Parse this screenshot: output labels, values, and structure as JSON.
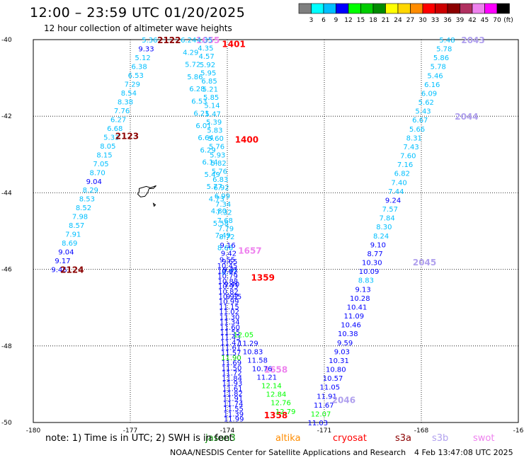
{
  "header": {
    "title": "12:00 – 23:59 UTC 01/20/2025",
    "subtitle": "12 hour collection of altimeter wave heights"
  },
  "colorbar": {
    "colors": [
      "#7f7f7f",
      "#00ffff",
      "#00bfff",
      "#0000ff",
      "#00ff00",
      "#00cd00",
      "#008b00",
      "#ffff00",
      "#ffd700",
      "#ff8c00",
      "#ff0000",
      "#cd0000",
      "#8b0000",
      "#b03060",
      "#ee82ee",
      "#ff00ff",
      "#000000"
    ],
    "labels": [
      "3",
      "6",
      "9",
      "12",
      "15",
      "18",
      "21",
      "24",
      "27",
      "30",
      "33",
      "36",
      "39",
      "42",
      "45",
      "70"
    ],
    "unit": "(ft)"
  },
  "footer": {
    "note": "note:  1) Time is in UTC; 2) SWH is in feet",
    "credit": "NOAA/NESDIS Center for Satellite Applications and Research",
    "timestamp": "4 Feb 13:47:08 UTC 2025"
  },
  "legend": [
    {
      "name": "jason3",
      "color": "#008b00"
    },
    {
      "name": "altika",
      "color": "#ff8c00"
    },
    {
      "name": "cryosat",
      "color": "#ff0000"
    },
    {
      "name": "s3a",
      "color": "#8b0000"
    },
    {
      "name": "s3b",
      "color": "#b0a0ee"
    },
    {
      "name": "swot",
      "color": "#ee82ee"
    }
  ],
  "chart_data": {
    "type": "scatter",
    "xlim": [
      -180,
      -165
    ],
    "ylim": [
      -50,
      -40
    ],
    "x_ticks": [
      "-180",
      "-177",
      "-174",
      "-171",
      "-168",
      "-16"
    ],
    "y_ticks": [
      "-40",
      "-42",
      "-44",
      "-46",
      "-48",
      "-50"
    ],
    "grid": true,
    "tracks": [
      {
        "start": [
          -176.4,
          -40.0
        ],
        "end": [
          -179.2,
          -46.0
        ],
        "values": [
          5.36,
          9.33,
          5.12,
          6.38,
          6.53,
          7.29,
          8.54,
          8.38,
          7.76,
          6.27,
          6.68,
          5.33,
          8.05,
          8.15,
          7.05,
          8.7,
          9.04,
          8.29,
          8.53,
          8.52,
          7.98,
          8.57,
          7.91,
          8.69,
          9.04,
          9.17,
          9.46
        ],
        "colors": [
          "#00bfff",
          "#0000ff",
          "#00bfff",
          "#00bfff",
          "#00bfff",
          "#00bfff",
          "#00bfff",
          "#00bfff",
          "#00bfff",
          "#00bfff",
          "#00bfff",
          "#00bfff",
          "#00bfff",
          "#00bfff",
          "#00bfff",
          "#00bfff",
          "#0000ff",
          "#00bfff",
          "#00bfff",
          "#00bfff",
          "#00bfff",
          "#00bfff",
          "#00bfff",
          "#00bfff",
          "#0000ff",
          "#0000ff",
          "#0000ff"
        ],
        "time_labels": [
          {
            "text": "2122",
            "lon": -175.8,
            "lat": -40.0,
            "color": "#8b0000"
          },
          {
            "text": "2123",
            "lon": -177.1,
            "lat": -42.5,
            "color": "#8b0000"
          },
          {
            "text": "2124",
            "lon": -178.8,
            "lat": -46.0,
            "color": "#8b0000"
          }
        ]
      },
      {
        "start": [
          -175.2,
          -40.0
        ],
        "end": [
          -173.8,
          -46.7
        ],
        "values": [
          6.24,
          4.29,
          5.72,
          5.86,
          6.28,
          6.53,
          6.21,
          6.01,
          6.64,
          6.29,
          6.14,
          5.49,
          5.77,
          4.73,
          4.8,
          5.58,
          7.49,
          8.66,
          9.55,
          8.77,
          9.4,
          9.35
        ],
        "colors": [
          "#00bfff",
          "#00bfff",
          "#00bfff",
          "#00bfff",
          "#00bfff",
          "#00bfff",
          "#00bfff",
          "#00bfff",
          "#00bfff",
          "#00bfff",
          "#00bfff",
          "#00bfff",
          "#00bfff",
          "#00bfff",
          "#00bfff",
          "#00bfff",
          "#00bfff",
          "#00bfff",
          "#0000ff",
          "#00bfff",
          "#0000ff",
          "#0000ff"
        ],
        "time_labels": [
          {
            "text": "1655",
            "lon": -174.6,
            "lat": -40.0,
            "color": "#ee82ee"
          },
          {
            "text": "1657",
            "lon": -173.3,
            "lat": -45.5,
            "color": "#ee82ee"
          },
          {
            "text": "1658",
            "lon": -172.5,
            "lat": -48.6,
            "color": "#ee82ee"
          }
        ]
      },
      {
        "start": [
          -174.7,
          -40.0
        ],
        "end": [
          -173.9,
          -46.0
        ],
        "values": [
          4.35,
          4.35,
          4.57,
          5.92,
          5.95,
          6.85,
          5.21,
          5.85,
          5.14,
          5.47,
          5.39,
          5.83,
          5.6,
          5.76,
          5.93,
          5.82,
          5.76,
          6.83,
          6.92,
          6.99,
          7.34,
          7.32,
          7.68,
          7.79,
          8.72,
          9.16,
          9.42,
          9.65,
          9.31
        ],
        "colors": [
          "#00bfff",
          "#00bfff",
          "#00bfff",
          "#00bfff",
          "#00bfff",
          "#00bfff",
          "#00bfff",
          "#00bfff",
          "#00bfff",
          "#00bfff",
          "#00bfff",
          "#00bfff",
          "#00bfff",
          "#00bfff",
          "#00bfff",
          "#00bfff",
          "#00bfff",
          "#00bfff",
          "#00bfff",
          "#00bfff",
          "#00bfff",
          "#00bfff",
          "#00bfff",
          "#00bfff",
          "#00bfff",
          "#0000ff",
          "#0000ff",
          "#0000ff",
          "#0000ff"
        ],
        "time_labels": [
          {
            "text": "1401",
            "lon": -173.8,
            "lat": -40.1,
            "color": "#ff0000"
          },
          {
            "text": "1400",
            "lon": -173.4,
            "lat": -42.6,
            "color": "#ff0000"
          },
          {
            "text": "1359",
            "lon": -172.9,
            "lat": -46.2,
            "color": "#ff0000"
          },
          {
            "text": "1358",
            "lon": -172.5,
            "lat": -49.8,
            "color": "#ff0000"
          }
        ]
      },
      {
        "start": [
          -174.0,
          -45.9
        ],
        "end": [
          -173.8,
          -49.9
        ],
        "values": [
          10.45,
          10.62,
          10.79,
          10.88,
          10.93,
          10.82,
          10.92,
          10.99,
          11.15,
          11.02,
          11.3,
          11.34,
          11.6,
          11.55,
          11.43,
          11.47,
          11.61,
          11.57,
          11.9,
          11.69,
          11.5,
          11.72,
          11.84,
          11.93,
          11.61,
          11.82,
          11.91,
          11.74,
          11.55,
          11.39,
          11.99
        ],
        "colors": [
          "#0000ff",
          "#0000ff",
          "#0000ff",
          "#0000ff",
          "#0000ff",
          "#0000ff",
          "#0000ff",
          "#0000ff",
          "#0000ff",
          "#0000ff",
          "#0000ff",
          "#0000ff",
          "#0000ff",
          "#0000ff",
          "#0000ff",
          "#0000ff",
          "#0000ff",
          "#0000ff",
          "#00cd00",
          "#0000ff",
          "#0000ff",
          "#0000ff",
          "#0000ff",
          "#0000ff",
          "#0000ff",
          "#0000ff",
          "#0000ff",
          "#0000ff",
          "#0000ff",
          "#0000ff",
          "#0000ff"
        ],
        "time_labels": []
      },
      {
        "start": [
          -173.5,
          -47.7
        ],
        "end": [
          -172.2,
          -49.7
        ],
        "values": [
          12.05,
          11.29,
          10.83,
          11.58,
          10.76,
          11.21,
          12.14,
          12.84,
          12.76,
          12.79
        ],
        "colors": [
          "#00ff00",
          "#0000ff",
          "#0000ff",
          "#0000ff",
          "#0000ff",
          "#0000ff",
          "#00ff00",
          "#00ff00",
          "#00ff00",
          "#00ff00"
        ],
        "time_labels": []
      },
      {
        "start": [
          -167.2,
          -40.0
        ],
        "end": [
          -171.2,
          -50.0
        ],
        "values": [
          5.48,
          5.78,
          5.86,
          5.78,
          5.46,
          6.16,
          6.09,
          5.62,
          5.43,
          6.67,
          5.66,
          8.31,
          7.43,
          7.6,
          7.16,
          6.82,
          7.4,
          7.44,
          9.24,
          7.57,
          7.84,
          8.3,
          8.24,
          9.1,
          8.77,
          10.3,
          10.09,
          8.83,
          9.13,
          10.28,
          10.41,
          11.09,
          10.46,
          10.38,
          9.59,
          9.03,
          10.31,
          10.8,
          10.57,
          11.05,
          11.91,
          11.67,
          12.07,
          11.03
        ],
        "colors": [
          "#00bfff",
          "#00bfff",
          "#00bfff",
          "#00bfff",
          "#00bfff",
          "#00bfff",
          "#00bfff",
          "#00bfff",
          "#00bfff",
          "#00bfff",
          "#00bfff",
          "#00bfff",
          "#00bfff",
          "#00bfff",
          "#00bfff",
          "#00bfff",
          "#00bfff",
          "#00bfff",
          "#0000ff",
          "#00bfff",
          "#00bfff",
          "#00bfff",
          "#00bfff",
          "#0000ff",
          "#0000ff",
          "#0000ff",
          "#0000ff",
          "#00bfff",
          "#0000ff",
          "#0000ff",
          "#0000ff",
          "#0000ff",
          "#0000ff",
          "#0000ff",
          "#0000ff",
          "#0000ff",
          "#0000ff",
          "#0000ff",
          "#0000ff",
          "#0000ff",
          "#0000ff",
          "#0000ff",
          "#00ff00",
          "#0000ff"
        ],
        "time_labels": [
          {
            "text": "2043",
            "lon": -166.4,
            "lat": -40.0,
            "color": "#b0a0ee"
          },
          {
            "text": "2044",
            "lon": -166.6,
            "lat": -42.0,
            "color": "#b0a0ee"
          },
          {
            "text": "2045",
            "lon": -167.9,
            "lat": -45.8,
            "color": "#b0a0ee"
          },
          {
            "text": "2046",
            "lon": -170.4,
            "lat": -49.4,
            "color": "#b0a0ee"
          }
        ]
      }
    ]
  }
}
